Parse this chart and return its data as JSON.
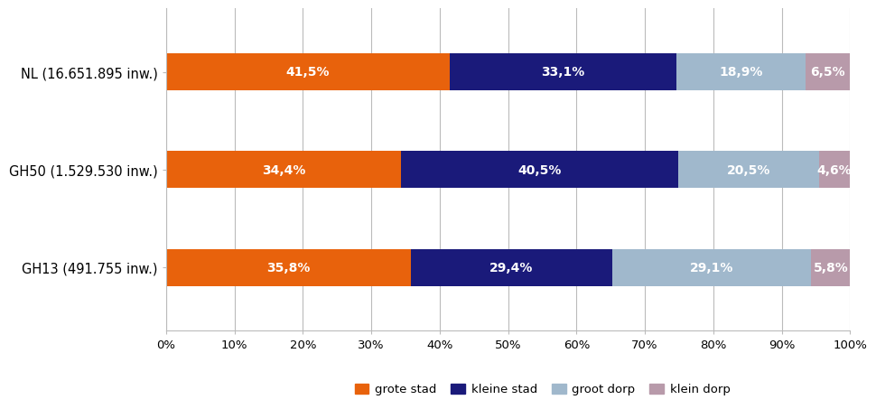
{
  "categories": [
    "NL (16.651.895 inw.)",
    "GH50 (1.529.530 inw.)",
    "GH13 (491.755 inw.)"
  ],
  "series": [
    {
      "label": "grote stad",
      "color": "#E8620C",
      "values": [
        41.5,
        34.4,
        35.8
      ]
    },
    {
      "label": "kleine stad",
      "color": "#1A1A7A",
      "values": [
        33.1,
        40.5,
        29.4
      ]
    },
    {
      "label": "groot dorp",
      "color": "#A0B8CC",
      "values": [
        18.9,
        20.5,
        29.1
      ]
    },
    {
      "label": "klein dorp",
      "color": "#B89AAA",
      "values": [
        6.5,
        4.6,
        5.8
      ]
    }
  ],
  "xlim": [
    0,
    100
  ],
  "xticks": [
    0,
    10,
    20,
    30,
    40,
    50,
    60,
    70,
    80,
    90,
    100
  ],
  "xticklabels": [
    "0%",
    "10%",
    "20%",
    "30%",
    "40%",
    "50%",
    "60%",
    "70%",
    "80%",
    "90%",
    "100%"
  ],
  "bar_height": 0.38,
  "background_color": "#FFFFFF",
  "grid_color": "#BBBBBB",
  "text_color": "#FFFFFF",
  "label_fontsize": 10,
  "tick_fontsize": 9.5,
  "legend_fontsize": 9.5,
  "ytick_fontsize": 10.5,
  "figsize": [
    9.47,
    4.52
  ],
  "dpi": 100
}
